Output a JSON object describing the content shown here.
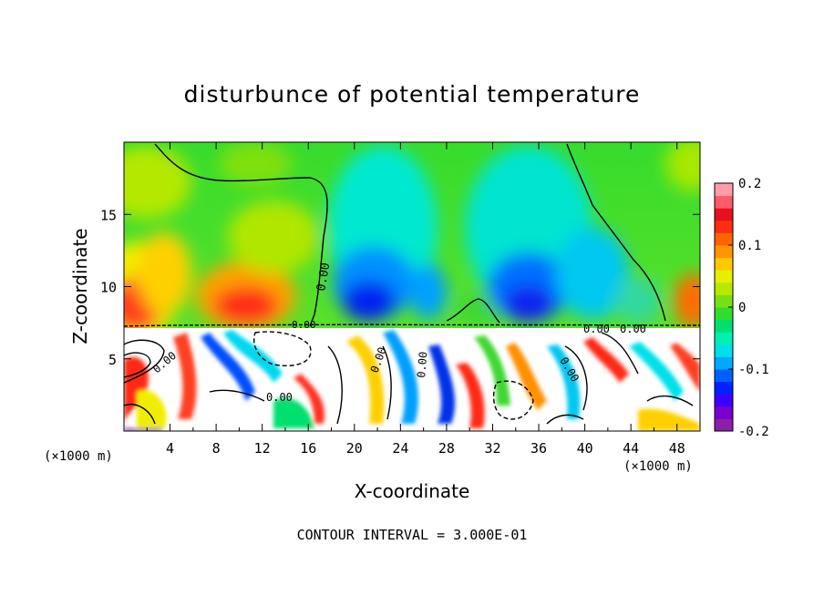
{
  "chart_data": {
    "type": "heatmap",
    "title": "disturbunce of potential temperature",
    "xlabel": "X-coordinate",
    "ylabel": "Z-coordinate",
    "x_unit": "(×1000 m)",
    "z_unit": "(×1000 m)",
    "footer": "CONTOUR INTERVAL = 3.000E-01",
    "x_range": [
      0,
      50
    ],
    "z_range": [
      0,
      20
    ],
    "x_ticks": [
      4,
      8,
      12,
      16,
      20,
      24,
      28,
      32,
      36,
      40,
      44,
      48
    ],
    "x_tick_labels": [
      "4",
      "8",
      "12",
      "16",
      "20",
      "24",
      "28",
      "32",
      "36",
      "40",
      "44",
      "48"
    ],
    "z_ticks": [
      5,
      10,
      15
    ],
    "z_tick_labels": [
      "5",
      "10",
      "15"
    ],
    "colorbar": {
      "range": [
        -0.2,
        0.2
      ],
      "tick_values": [
        0.2,
        0.1,
        0,
        -0.1,
        -0.2
      ],
      "tick_labels": [
        "0.2",
        "0.1",
        "0",
        "-0.1",
        "-0.2"
      ],
      "colors": [
        "#8b1fa8",
        "#7a00d0",
        "#3d00ff",
        "#0022ff",
        "#0060ff",
        "#00a8ff",
        "#00e0e8",
        "#00f0b4",
        "#00e070",
        "#30dc2e",
        "#78e010",
        "#b8e800",
        "#e8ee00",
        "#ffc800",
        "#ff9600",
        "#ff6400",
        "#ff2c14",
        "#e8101e",
        "#ff5a6a",
        "#ff9eaa"
      ]
    },
    "contour_labels": [
      "0.00",
      "0.00",
      "0.00",
      "0.00",
      "0.00",
      "0.00",
      "0.00",
      "0.00",
      "0.00"
    ],
    "regions": {
      "upper_layer_z": [
        7.3,
        20
      ],
      "lower_layer_z": [
        0,
        7.3
      ],
      "upper_warm_x": [
        [
          0,
          6
        ],
        [
          8,
          15
        ],
        [
          48,
          50
        ]
      ],
      "upper_cold_x": [
        [
          18,
          27
        ],
        [
          32,
          41
        ]
      ]
    }
  }
}
